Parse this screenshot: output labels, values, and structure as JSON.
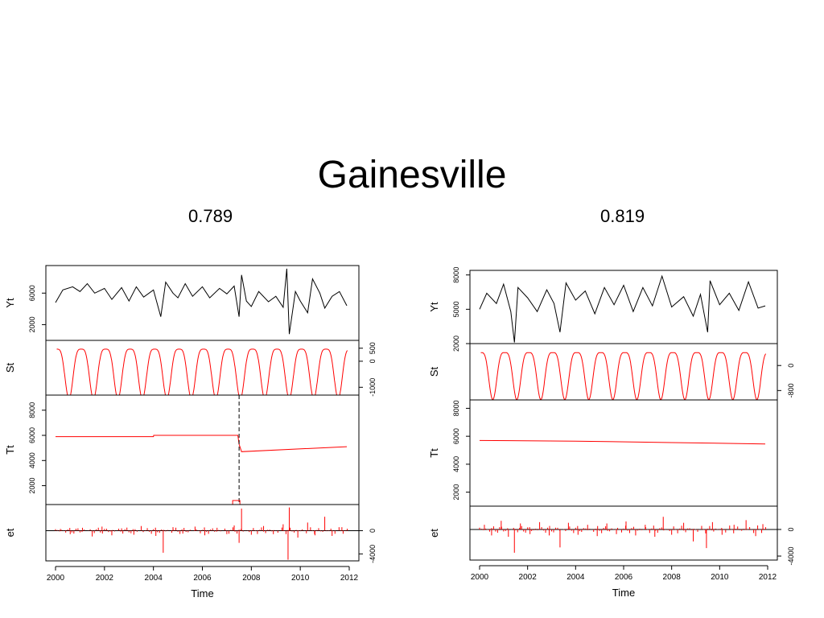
{
  "slide": {
    "title": "Gainesville",
    "left_label": "0.789",
    "right_label": "0.819"
  },
  "colors": {
    "series": "#000000",
    "components": "#ff0000",
    "axis": "#000000"
  },
  "chart_data": [
    {
      "type": "line",
      "title": "0.789",
      "xlabel": "Time",
      "xlim": [
        2000,
        2012
      ],
      "x_ticks": [
        2000,
        2002,
        2004,
        2006,
        2008,
        2010,
        2012
      ],
      "break_year": 2007.5,
      "panels": [
        {
          "name": "Yt",
          "ylim": [
            0,
            9500
          ],
          "y_ticks": [
            2000,
            6000
          ],
          "tick_side": "left",
          "kind": "line",
          "color": "#000000",
          "points": [
            [
              2000,
              4800
            ],
            [
              2000.3,
              6400
            ],
            [
              2000.7,
              6800
            ],
            [
              2001,
              6200
            ],
            [
              2001.3,
              7200
            ],
            [
              2001.6,
              6000
            ],
            [
              2002,
              6600
            ],
            [
              2002.3,
              5200
            ],
            [
              2002.7,
              6700
            ],
            [
              2003,
              5000
            ],
            [
              2003.3,
              6800
            ],
            [
              2003.6,
              5500
            ],
            [
              2004,
              6400
            ],
            [
              2004.3,
              3000
            ],
            [
              2004.5,
              7400
            ],
            [
              2004.8,
              6000
            ],
            [
              2005,
              5400
            ],
            [
              2005.3,
              7200
            ],
            [
              2005.6,
              5600
            ],
            [
              2006,
              6800
            ],
            [
              2006.3,
              5400
            ],
            [
              2006.7,
              6600
            ],
            [
              2007,
              5900
            ],
            [
              2007.3,
              6900
            ],
            [
              2007.5,
              3000
            ],
            [
              2007.6,
              8300
            ],
            [
              2007.8,
              5000
            ],
            [
              2008,
              4300
            ],
            [
              2008.3,
              6200
            ],
            [
              2008.7,
              4900
            ],
            [
              2009,
              5600
            ],
            [
              2009.3,
              4200
            ],
            [
              2009.45,
              9100
            ],
            [
              2009.55,
              800
            ],
            [
              2009.8,
              6200
            ],
            [
              2010,
              5000
            ],
            [
              2010.3,
              3500
            ],
            [
              2010.5,
              7800
            ],
            [
              2010.8,
              6000
            ],
            [
              2011,
              4100
            ],
            [
              2011.3,
              5600
            ],
            [
              2011.6,
              6200
            ],
            [
              2011.9,
              4400
            ]
          ]
        },
        {
          "name": "St",
          "ylim": [
            -1300,
            800
          ],
          "y_ticks": [
            -1000,
            0,
            500
          ],
          "tick_side": "right",
          "kind": "seasonal",
          "color": "#ff0000",
          "amplitude": 1900,
          "offset": -250,
          "start_x": 2000.05
        },
        {
          "name": "Tt",
          "ylim": [
            500,
            9200
          ],
          "y_ticks": [
            2000,
            4000,
            6000,
            8000
          ],
          "tick_side": "left",
          "kind": "line",
          "color": "#ff0000",
          "points": [
            [
              2000,
              5900
            ],
            [
              2004,
              5900
            ],
            [
              2004.01,
              6000
            ],
            [
              2007.45,
              6000
            ],
            [
              2007.5,
              5300
            ],
            [
              2007.6,
              4700
            ],
            [
              2011.9,
              5100
            ]
          ]
        },
        {
          "name": "et",
          "ylim": [
            -5200,
            4500
          ],
          "y_ticks": [
            -4000,
            0
          ],
          "tick_side": "right",
          "kind": "spikes",
          "color": "#ff0000",
          "points": [
            [
              2000.2,
              300
            ],
            [
              2000.6,
              -600
            ],
            [
              2001.1,
              500
            ],
            [
              2001.5,
              -1000
            ],
            [
              2001.9,
              700
            ],
            [
              2002.3,
              -800
            ],
            [
              2002.7,
              400
            ],
            [
              2003.2,
              -700
            ],
            [
              2003.5,
              800
            ],
            [
              2004.1,
              -900
            ],
            [
              2004.4,
              -3800
            ],
            [
              2004.8,
              600
            ],
            [
              2005.2,
              -500
            ],
            [
              2005.7,
              700
            ],
            [
              2006.1,
              -800
            ],
            [
              2006.6,
              500
            ],
            [
              2007.0,
              -600
            ],
            [
              2007.3,
              900
            ],
            [
              2007.5,
              -2100
            ],
            [
              2007.6,
              3800
            ],
            [
              2008.0,
              -700
            ],
            [
              2008.5,
              800
            ],
            [
              2008.9,
              -600
            ],
            [
              2009.3,
              1100
            ],
            [
              2009.5,
              -5000
            ],
            [
              2009.55,
              4000
            ],
            [
              2009.9,
              -1200
            ],
            [
              2010.3,
              1400
            ],
            [
              2010.6,
              -800
            ],
            [
              2011.0,
              2400
            ],
            [
              2011.3,
              -900
            ],
            [
              2011.7,
              600
            ]
          ]
        }
      ]
    },
    {
      "type": "line",
      "title": "0.819",
      "xlabel": "Time",
      "xlim": [
        2000,
        2012
      ],
      "x_ticks": [
        2000,
        2002,
        2004,
        2006,
        2008,
        2010,
        2012
      ],
      "panels": [
        {
          "name": "Yt",
          "ylim": [
            2000,
            8400
          ],
          "y_ticks": [
            2000,
            5000,
            8000
          ],
          "tick_side": "left",
          "kind": "line",
          "color": "#000000",
          "points": [
            [
              2000,
              5000
            ],
            [
              2000.3,
              6400
            ],
            [
              2000.7,
              5500
            ],
            [
              2001,
              7200
            ],
            [
              2001.3,
              4800
            ],
            [
              2001.45,
              2100
            ],
            [
              2001.6,
              6900
            ],
            [
              2002,
              6000
            ],
            [
              2002.4,
              4800
            ],
            [
              2002.8,
              6700
            ],
            [
              2003.1,
              5500
            ],
            [
              2003.35,
              3000
            ],
            [
              2003.6,
              7300
            ],
            [
              2004,
              5800
            ],
            [
              2004.4,
              6600
            ],
            [
              2004.8,
              4600
            ],
            [
              2005.2,
              6900
            ],
            [
              2005.6,
              5400
            ],
            [
              2006,
              7100
            ],
            [
              2006.4,
              4800
            ],
            [
              2006.8,
              6900
            ],
            [
              2007.2,
              5300
            ],
            [
              2007.6,
              7900
            ],
            [
              2008,
              5200
            ],
            [
              2008.5,
              6100
            ],
            [
              2008.9,
              4400
            ],
            [
              2009.2,
              6300
            ],
            [
              2009.5,
              3000
            ],
            [
              2009.6,
              7500
            ],
            [
              2010,
              5400
            ],
            [
              2010.4,
              6400
            ],
            [
              2010.8,
              4900
            ],
            [
              2011.2,
              7400
            ],
            [
              2011.6,
              5100
            ],
            [
              2011.9,
              5300
            ]
          ]
        },
        {
          "name": "St",
          "ylim": [
            -1100,
            700
          ],
          "y_ticks": [
            -800,
            0
          ],
          "tick_side": "right",
          "kind": "seasonal",
          "color": "#ff0000",
          "amplitude": 1500,
          "offset": -150,
          "start_x": 2000.05
        },
        {
          "name": "Tt",
          "ylim": [
            1000,
            8600
          ],
          "y_ticks": [
            2000,
            4000,
            6000,
            8000
          ],
          "tick_side": "left",
          "kind": "line",
          "color": "#ff0000",
          "points": [
            [
              2000,
              5700
            ],
            [
              2004,
              5650
            ],
            [
              2008,
              5550
            ],
            [
              2011.9,
              5450
            ]
          ]
        },
        {
          "name": "et",
          "ylim": [
            -4600,
            3500
          ],
          "y_ticks": [
            -4000,
            0
          ],
          "tick_side": "right",
          "kind": "spikes",
          "color": "#ff0000",
          "points": [
            [
              2000.2,
              700
            ],
            [
              2000.5,
              -900
            ],
            [
              2000.9,
              1300
            ],
            [
              2001.2,
              -1100
            ],
            [
              2001.45,
              -3500
            ],
            [
              2001.7,
              900
            ],
            [
              2002.1,
              -700
            ],
            [
              2002.5,
              1100
            ],
            [
              2002.9,
              -900
            ],
            [
              2003.35,
              -2700
            ],
            [
              2003.7,
              1000
            ],
            [
              2004.1,
              -800
            ],
            [
              2004.5,
              700
            ],
            [
              2004.9,
              -1000
            ],
            [
              2005.3,
              900
            ],
            [
              2005.7,
              -700
            ],
            [
              2006.1,
              1200
            ],
            [
              2006.5,
              -900
            ],
            [
              2006.9,
              700
            ],
            [
              2007.3,
              -1100
            ],
            [
              2007.65,
              1900
            ],
            [
              2008.0,
              -800
            ],
            [
              2008.5,
              1000
            ],
            [
              2008.9,
              -1800
            ],
            [
              2009.45,
              -2800
            ],
            [
              2009.7,
              1100
            ],
            [
              2010.1,
              -800
            ],
            [
              2010.6,
              700
            ],
            [
              2011.1,
              1400
            ],
            [
              2011.5,
              -1000
            ],
            [
              2011.8,
              800
            ]
          ]
        }
      ]
    }
  ]
}
